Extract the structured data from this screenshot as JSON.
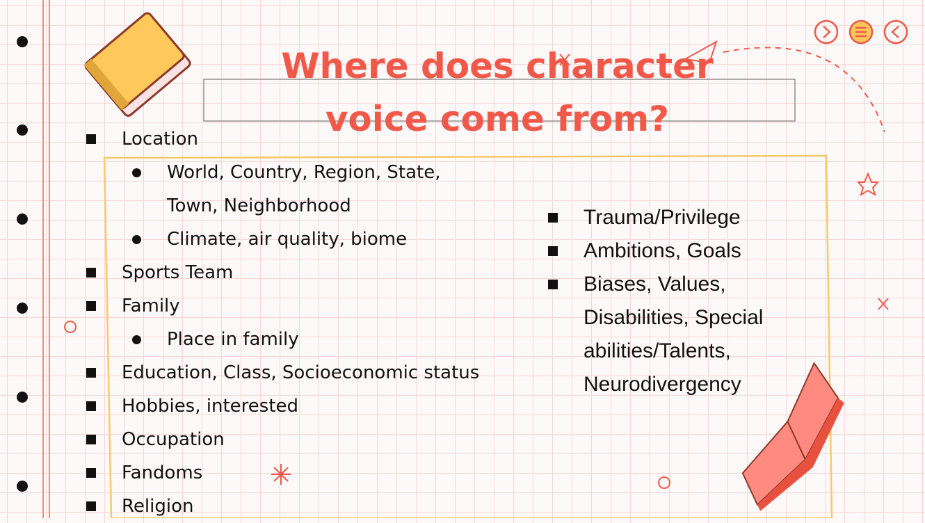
{
  "title": "Where does character voice come from?",
  "left_list": {
    "items": [
      {
        "text": "Location",
        "children": [
          "World, Country, Region, State, Town, Neighborhood",
          "Climate, air quality, biome"
        ]
      },
      {
        "text": "Sports Team"
      },
      {
        "text": "Family",
        "children": [
          "Place in family"
        ]
      },
      {
        "text": "Education, Class, Socioeconomic status"
      },
      {
        "text": "Hobbies, interested"
      },
      {
        "text": "Occupation"
      },
      {
        "text": "Fandoms"
      },
      {
        "text": "Religion"
      }
    ]
  },
  "right_list": {
    "items": [
      "Trauma/Privilege",
      "Ambitions, Goals",
      "Biases, Values, Disabilities, Special abilities/Talents, Neurodivergency"
    ]
  }
}
